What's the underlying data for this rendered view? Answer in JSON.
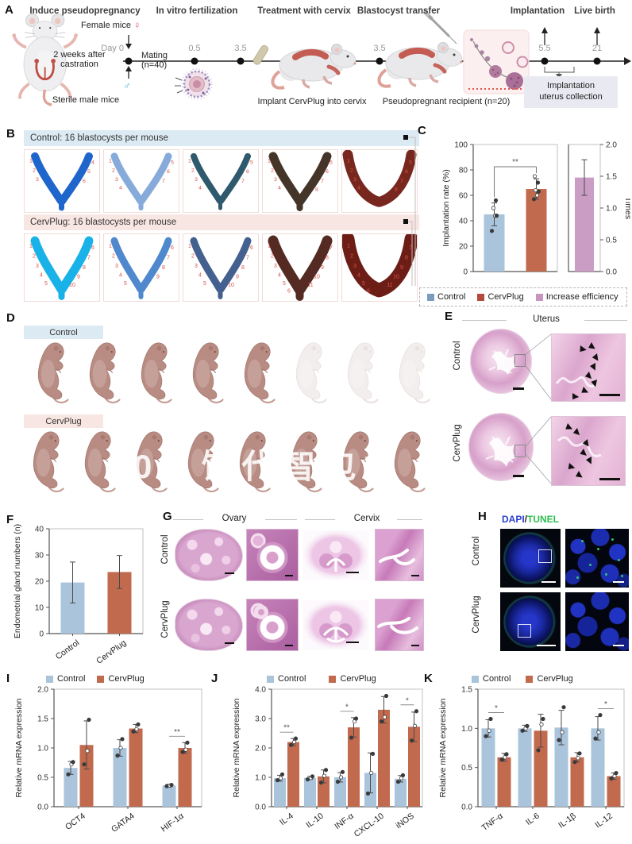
{
  "watermark": {
    "text": "02 饥代智包力"
  },
  "panels": {
    "A": {
      "label": "A",
      "stages": [
        "Induce pseudopregnancy",
        "In vitro fertilization",
        "Treatment with cervix",
        "Blastocyst transfer",
        "Implantation",
        "Live birth"
      ],
      "female_mice": "Female mice",
      "female_symbol": "♀",
      "male_symbol": "♂",
      "castration_line1": "2 weeks after",
      "castration_line2": "castration",
      "sterile_male": "Sterile male mice",
      "day0": "Day 0",
      "mating_line1": "Mating",
      "mating_line2": "(n=40)",
      "timepoints": [
        "0.5",
        "3.5",
        "3.5",
        "5.5",
        "21"
      ],
      "implant_label": "Implant CervPlug into cervix",
      "recipient_label": "Pseudopregnant recipient (n=20)",
      "collection_line1": "Implantation",
      "collection_line2": "uterus collection"
    },
    "B": {
      "label": "B",
      "control_header": "Control: 16 blastocysts per mouse",
      "cervplug_header": "CervPlug: 16 blastocysts per mouse",
      "site_number_color": "#d9544d",
      "control_images": [
        {
          "color": "#1f66cc",
          "w": 10,
          "sites": 6,
          "shape": "V"
        },
        {
          "color": "#86abdb",
          "w": 9,
          "sites": 7,
          "shape": "V"
        },
        {
          "color": "#2f5a6e",
          "w": 8,
          "sites": 7,
          "shape": "V"
        },
        {
          "color": "#453529",
          "w": 11,
          "sites": 8,
          "shape": "V"
        },
        {
          "color": "#77271e",
          "w": 13,
          "sites": 8,
          "shape": "U"
        }
      ],
      "cervplug_images": [
        {
          "color": "#18b2e8",
          "w": 11,
          "sites": 10,
          "shape": "V"
        },
        {
          "color": "#4f88cc",
          "w": 9,
          "sites": 9,
          "shape": "V"
        },
        {
          "color": "#44608f",
          "w": 9,
          "sites": 10,
          "shape": "V"
        },
        {
          "color": "#542a22",
          "w": 13,
          "sites": 11,
          "shape": "V"
        },
        {
          "color": "#6b1d16",
          "w": 17,
          "sites": 11,
          "shape": "U"
        }
      ]
    },
    "C": {
      "label": "C",
      "legend": [
        {
          "label": "Control",
          "color": "#7b9cbd"
        },
        {
          "label": "CervPlug",
          "color": "#b5493d"
        },
        {
          "label": "Increase efficiency",
          "color": "#c795bf"
        }
      ]
    },
    "D": {
      "label": "D",
      "control_label": "Control",
      "cervplug_label": "CervPlug",
      "control_pups": {
        "solid": 5,
        "ghost": 3
      },
      "cervplug_pups": {
        "solid": 8,
        "ghost": 0
      }
    },
    "E": {
      "label": "E",
      "title": "Uterus",
      "row_labels": [
        "Control",
        "CervPlug"
      ]
    },
    "F": {
      "label": "F"
    },
    "G": {
      "label": "G",
      "col_titles": [
        "Ovary",
        "Cervix"
      ],
      "row_labels": [
        "Control",
        "CervPlug"
      ]
    },
    "H": {
      "label": "H",
      "title_dapi": "DAPI",
      "title_sep": "/",
      "title_tunel": "TUNEL",
      "dapi_color": "#2b3fd0",
      "tunel_color": "#2fbf4f",
      "row_labels": [
        "Control",
        "CervPlug"
      ]
    },
    "I": {
      "label": "I"
    },
    "J": {
      "label": "J"
    },
    "K": {
      "label": "K"
    }
  },
  "chart_data": [
    {
      "id": "C_rate",
      "type": "bar",
      "ylabel": "Implantation rate (%)",
      "ylim": [
        0,
        100
      ],
      "yticks": [
        0,
        20,
        40,
        60,
        80,
        100
      ],
      "ytick_labels": [
        "0",
        "20",
        "40",
        "60",
        "80",
        "100"
      ],
      "categories": [
        "Control",
        "CervPlug"
      ],
      "bar_colors": [
        "#aac4db",
        "#c26a4e"
      ],
      "values": [
        45,
        65
      ],
      "errors": [
        9,
        8
      ],
      "dots": [
        [
          32,
          44,
          44,
          50,
          56
        ],
        [
          57,
          60,
          63,
          64,
          70,
          75
        ]
      ],
      "sig": [
        {
          "pair": [
            0,
            1
          ],
          "text": "**"
        }
      ]
    },
    {
      "id": "C_times",
      "type": "bar",
      "ylabel": "Times",
      "ylabel_side": "right",
      "ylim": [
        0,
        2
      ],
      "yticks": [
        0,
        0.5,
        1,
        1.5,
        2
      ],
      "ytick_labels": [
        "0.0",
        "0.5",
        "1.0",
        "1.5",
        "2.0"
      ],
      "categories": [
        "Increase efficiency"
      ],
      "bar_colors": [
        "#ca9dc4"
      ],
      "values": [
        1.48
      ],
      "errors": [
        0.28
      ],
      "dots": [
        []
      ]
    },
    {
      "id": "F",
      "type": "bar",
      "ylabel": "Endometrial gland numbers (n)",
      "ylim": [
        0,
        40
      ],
      "yticks": [
        0,
        10,
        20,
        30,
        40
      ],
      "ytick_labels": [
        "0",
        "10",
        "20",
        "30",
        "40"
      ],
      "categories": [
        "Control",
        "CervPlug"
      ],
      "bar_colors": [
        "#aac4db",
        "#c26a4e"
      ],
      "values": [
        19.5,
        23.5
      ],
      "errors": [
        7.8,
        6.3
      ],
      "dots": [
        [],
        []
      ],
      "cat_rotate": true
    },
    {
      "id": "I",
      "type": "bar",
      "ylabel": "Relative mRNA expression",
      "ylim": [
        0,
        2
      ],
      "yticks": [
        0,
        0.5,
        1,
        1.5,
        2
      ],
      "ytick_labels": [
        "0.0",
        "0.5",
        "1.0",
        "1.5",
        "2.0"
      ],
      "categories": [
        "OCT4",
        "GATA4",
        "HIF-1α"
      ],
      "cat_rotate": true,
      "series": [
        {
          "name": "Control",
          "color": "#aac4db",
          "values": [
            0.66,
            1.0,
            0.36
          ],
          "errors": [
            0.11,
            0.14,
            0.02
          ],
          "dots": [
            [
              0.55,
              0.72,
              0.76
            ],
            [
              0.87,
              1.0,
              1.15
            ],
            [
              0.35,
              0.36,
              0.37
            ]
          ]
        },
        {
          "name": "CervPlug",
          "color": "#c26a4e",
          "values": [
            1.05,
            1.33,
            1.0
          ],
          "errors": [
            0.41,
            0.07,
            0.09
          ],
          "dots": [
            [
              0.72,
              0.95,
              1.48
            ],
            [
              1.28,
              1.32,
              1.4
            ],
            [
              0.93,
              0.97,
              1.09
            ]
          ]
        }
      ],
      "sig": [
        {
          "cat": 2,
          "text": "**"
        }
      ]
    },
    {
      "id": "J",
      "type": "bar",
      "ylabel": "Relative mRNA expression",
      "ylim": [
        0,
        4
      ],
      "yticks": [
        0,
        1,
        2,
        3,
        4
      ],
      "ytick_labels": [
        "0.0",
        "1.0",
        "2.0",
        "3.0",
        "4.0"
      ],
      "categories": [
        "IL-4",
        "IL-10",
        "INF-α",
        "CXCL-10",
        "iNOS"
      ],
      "cat_rotate": true,
      "series": [
        {
          "name": "Control",
          "color": "#aac4db",
          "values": [
            0.97,
            0.98,
            1.0,
            1.15,
            0.95
          ],
          "errors": [
            0.1,
            0.05,
            0.16,
            0.68,
            0.11
          ],
          "dots": [
            [
              0.9,
              0.97,
              1.1
            ],
            [
              0.93,
              0.98,
              1.03
            ],
            [
              0.85,
              1.0,
              1.18
            ],
            [
              0.45,
              1.15,
              1.8
            ],
            [
              0.85,
              0.97,
              1.07
            ]
          ]
        },
        {
          "name": "CervPlug",
          "color": "#c26a4e",
          "values": [
            2.2,
            1.03,
            2.7,
            3.3,
            2.72
          ],
          "errors": [
            0.12,
            0.22,
            0.33,
            0.45,
            0.5
          ],
          "dots": [
            [
              2.1,
              2.2,
              2.32
            ],
            [
              0.82,
              1.05,
              1.25
            ],
            [
              2.35,
              2.9,
              3.0
            ],
            [
              2.9,
              3.05,
              3.77
            ],
            [
              2.25,
              2.75,
              3.25
            ]
          ]
        }
      ],
      "sig": [
        {
          "cat": 0,
          "text": "**"
        },
        {
          "cat": 2,
          "text": "*"
        },
        {
          "cat": 4,
          "text": "*"
        }
      ]
    },
    {
      "id": "K",
      "type": "bar",
      "ylabel": "Relative mRNA expression",
      "ylim": [
        0,
        1.5
      ],
      "yticks": [
        0,
        0.5,
        1,
        1.5
      ],
      "ytick_labels": [
        "0.0",
        "0.5",
        "1.0",
        "1.5"
      ],
      "categories": [
        "TNF-α",
        "IL-6",
        "IL-1β",
        "IL-12"
      ],
      "cat_rotate": true,
      "series": [
        {
          "name": "Control",
          "color": "#aac4db",
          "values": [
            1.0,
            1.0,
            1.01,
            1.0
          ],
          "errors": [
            0.11,
            0.04,
            0.22,
            0.15
          ],
          "dots": [
            [
              0.9,
              0.97,
              1.12
            ],
            [
              0.97,
              1.0,
              1.03
            ],
            [
              0.85,
              0.95,
              1.27
            ],
            [
              0.87,
              0.95,
              1.17
            ]
          ]
        },
        {
          "name": "CervPlug",
          "color": "#c26a4e",
          "values": [
            0.63,
            0.97,
            0.63,
            0.39
          ],
          "errors": [
            0.05,
            0.21,
            0.06,
            0.04
          ],
          "dots": [
            [
              0.6,
              0.63,
              0.67
            ],
            [
              0.72,
              1.05,
              1.12
            ],
            [
              0.57,
              0.62,
              0.68
            ],
            [
              0.36,
              0.39,
              0.43
            ]
          ]
        }
      ],
      "sig": [
        {
          "cat": 0,
          "text": "*"
        },
        {
          "cat": 3,
          "text": "*"
        }
      ]
    }
  ]
}
